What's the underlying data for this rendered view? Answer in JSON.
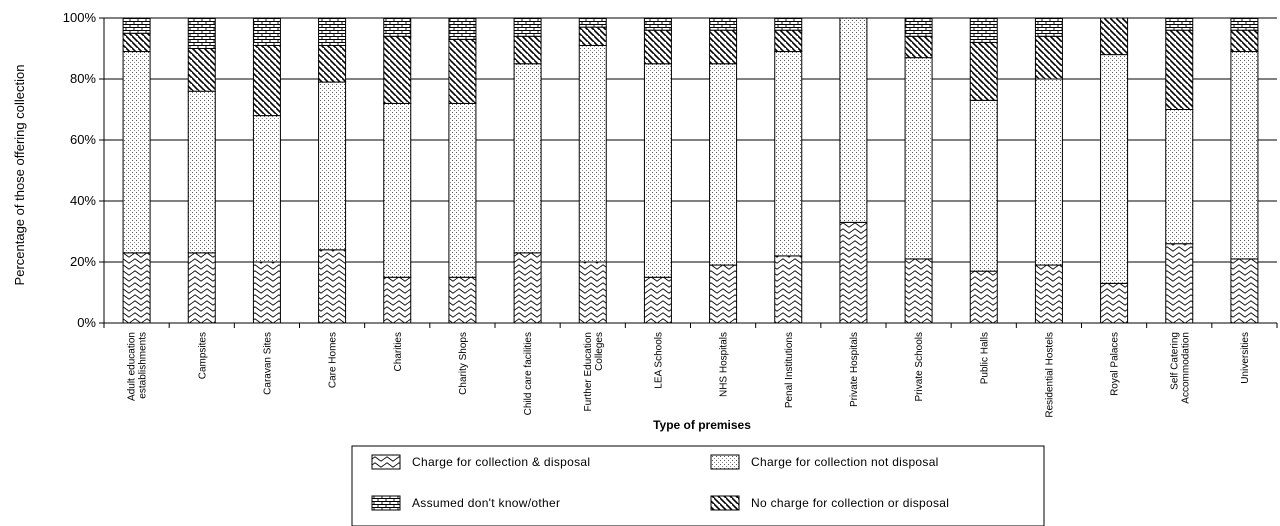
{
  "chart_data": {
    "type": "bar",
    "stacked": true,
    "percent_stacked": true,
    "ylabel": "Percentage of those offering collection",
    "xlabel": "Type of premises",
    "ylim": [
      0,
      100
    ],
    "yticks": [
      "0%",
      "20%",
      "40%",
      "60%",
      "80%",
      "100%"
    ],
    "grid": true,
    "legend_position": "bottom",
    "categories": [
      [
        "Adult education",
        "establishments"
      ],
      [
        "Campsites"
      ],
      [
        "Caravan Sites"
      ],
      [
        "Care Homes"
      ],
      [
        "Charities"
      ],
      [
        "Charity Shops"
      ],
      [
        "Child care facilities"
      ],
      [
        "Further Education",
        "Colleges"
      ],
      [
        "LEA Schools"
      ],
      [
        "NHS Hospitals"
      ],
      [
        "Penal Institutions"
      ],
      [
        "Private Hospitals"
      ],
      [
        "Private Schools"
      ],
      [
        "Public Halls"
      ],
      [
        "Residential Hostels"
      ],
      [
        "Royal Palaces"
      ],
      [
        "Self Catering",
        "Accommodation"
      ],
      [
        "Universities"
      ]
    ],
    "series": [
      {
        "name": "Charge for collection & disposal",
        "pattern": "wave",
        "values": [
          23,
          23,
          20,
          24,
          15,
          15,
          23,
          20,
          15,
          19,
          22,
          33,
          21,
          17,
          19,
          13,
          26,
          21
        ]
      },
      {
        "name": "Charge for collection not disposal",
        "pattern": "dots",
        "values": [
          66,
          53,
          48,
          55,
          57,
          57,
          62,
          71,
          70,
          66,
          67,
          67,
          66,
          56,
          61,
          75,
          44,
          68
        ]
      },
      {
        "name": "No charge for collection or disposal",
        "pattern": "diagonal",
        "values": [
          6,
          14,
          23,
          12,
          22,
          21,
          9,
          6,
          11,
          11,
          7,
          0,
          7,
          19,
          14,
          12,
          26,
          7
        ]
      },
      {
        "name": "Assumed don't know/other",
        "pattern": "brick",
        "values": [
          5,
          10,
          9,
          9,
          6,
          7,
          6,
          3,
          4,
          4,
          4,
          0,
          6,
          8,
          6,
          0,
          4,
          4
        ]
      }
    ],
    "legend_order": [
      "Charge for collection & disposal",
      "Charge for collection not disposal",
      "Assumed don't know/other",
      "No charge for collection or disposal"
    ]
  }
}
